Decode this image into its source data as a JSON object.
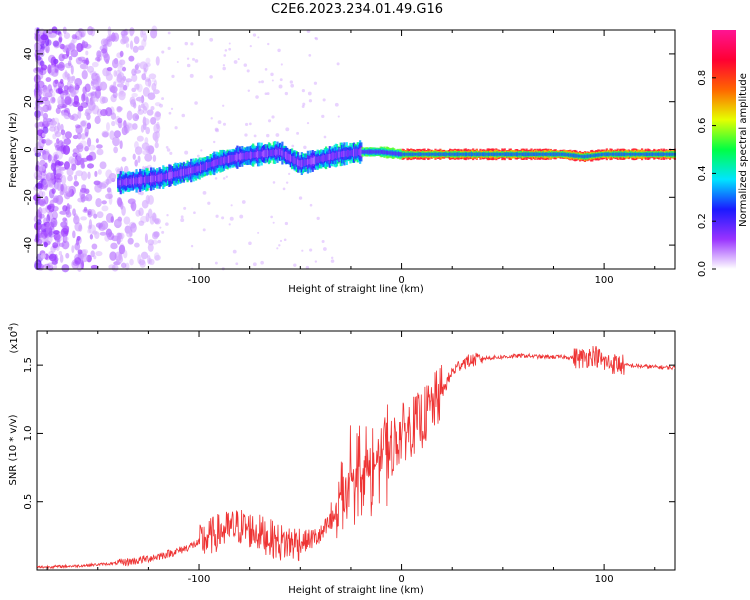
{
  "title": "C2E6.2023.234.01.49.G16",
  "chart_data": [
    {
      "type": "heatmap",
      "xlabel": "Height of straight line (km)",
      "ylabel": "Frequency (Hz)",
      "xlim": [
        -180,
        135
      ],
      "ylim": [
        -50,
        50
      ],
      "x_ticks": [
        -100,
        0,
        100
      ],
      "y_ticks": [
        -40,
        -20,
        0,
        20,
        40
      ],
      "ridge_track": {
        "description_free": true,
        "x": [
          -140,
          -130,
          -120,
          -110,
          -100,
          -90,
          -80,
          -70,
          -60,
          -50,
          -40,
          -30,
          -20,
          -10,
          0,
          20,
          40,
          60,
          80,
          90,
          100,
          120,
          135
        ],
        "y": [
          -14,
          -13,
          -12,
          -10,
          -8,
          -5,
          -3,
          -2,
          -1,
          -6,
          -4,
          -2,
          -1,
          -1,
          -2,
          -2,
          -2,
          -2,
          -2,
          -3,
          -2,
          -2,
          -2
        ]
      },
      "colorbar": {
        "label": "Normalized spectral amplitude",
        "range": [
          0,
          1
        ],
        "ticks": [
          0.0,
          0.2,
          0.4,
          0.6,
          0.8
        ],
        "colors": [
          "#ffffff",
          "#9933ff",
          "#1a1aff",
          "#00e5ff",
          "#00ff44",
          "#e6ff00",
          "#ff6600",
          "#ff0033",
          "#ff1493"
        ]
      }
    },
    {
      "type": "line",
      "xlabel": "Height of straight line (km)",
      "ylabel": "SNR (10 * v/v)",
      "y_multiplier": "(x10",
      "y_multiplier_exp": "4",
      "y_multiplier_close": ")",
      "xlim": [
        -180,
        135
      ],
      "ylim": [
        0,
        1.75
      ],
      "x_ticks": [
        -100,
        0,
        100
      ],
      "y_ticks": [
        0.5,
        1.0,
        1.5
      ],
      "y_tick_labels": [
        "0.5",
        "1.0",
        "1.5"
      ],
      "color": "#ee3333",
      "series": [
        {
          "x": [
            -180,
            -160,
            -140,
            -130,
            -120,
            -110,
            -100,
            -90,
            -80,
            -70,
            -60,
            -50,
            -40,
            -35,
            -30,
            -25,
            -20,
            -15,
            -10,
            -5,
            0,
            5,
            10,
            15,
            20,
            25,
            30,
            40,
            50,
            60,
            70,
            80,
            90,
            95,
            100,
            110,
            120,
            135
          ],
          "y": [
            0.02,
            0.03,
            0.05,
            0.07,
            0.1,
            0.14,
            0.2,
            0.28,
            0.32,
            0.27,
            0.2,
            0.2,
            0.25,
            0.35,
            0.55,
            0.7,
            0.75,
            0.7,
            0.85,
            0.9,
            1.0,
            1.05,
            1.1,
            1.2,
            1.3,
            1.45,
            1.52,
            1.55,
            1.56,
            1.57,
            1.56,
            1.56,
            1.55,
            1.58,
            1.52,
            1.5,
            1.49,
            1.48
          ]
        }
      ]
    }
  ]
}
